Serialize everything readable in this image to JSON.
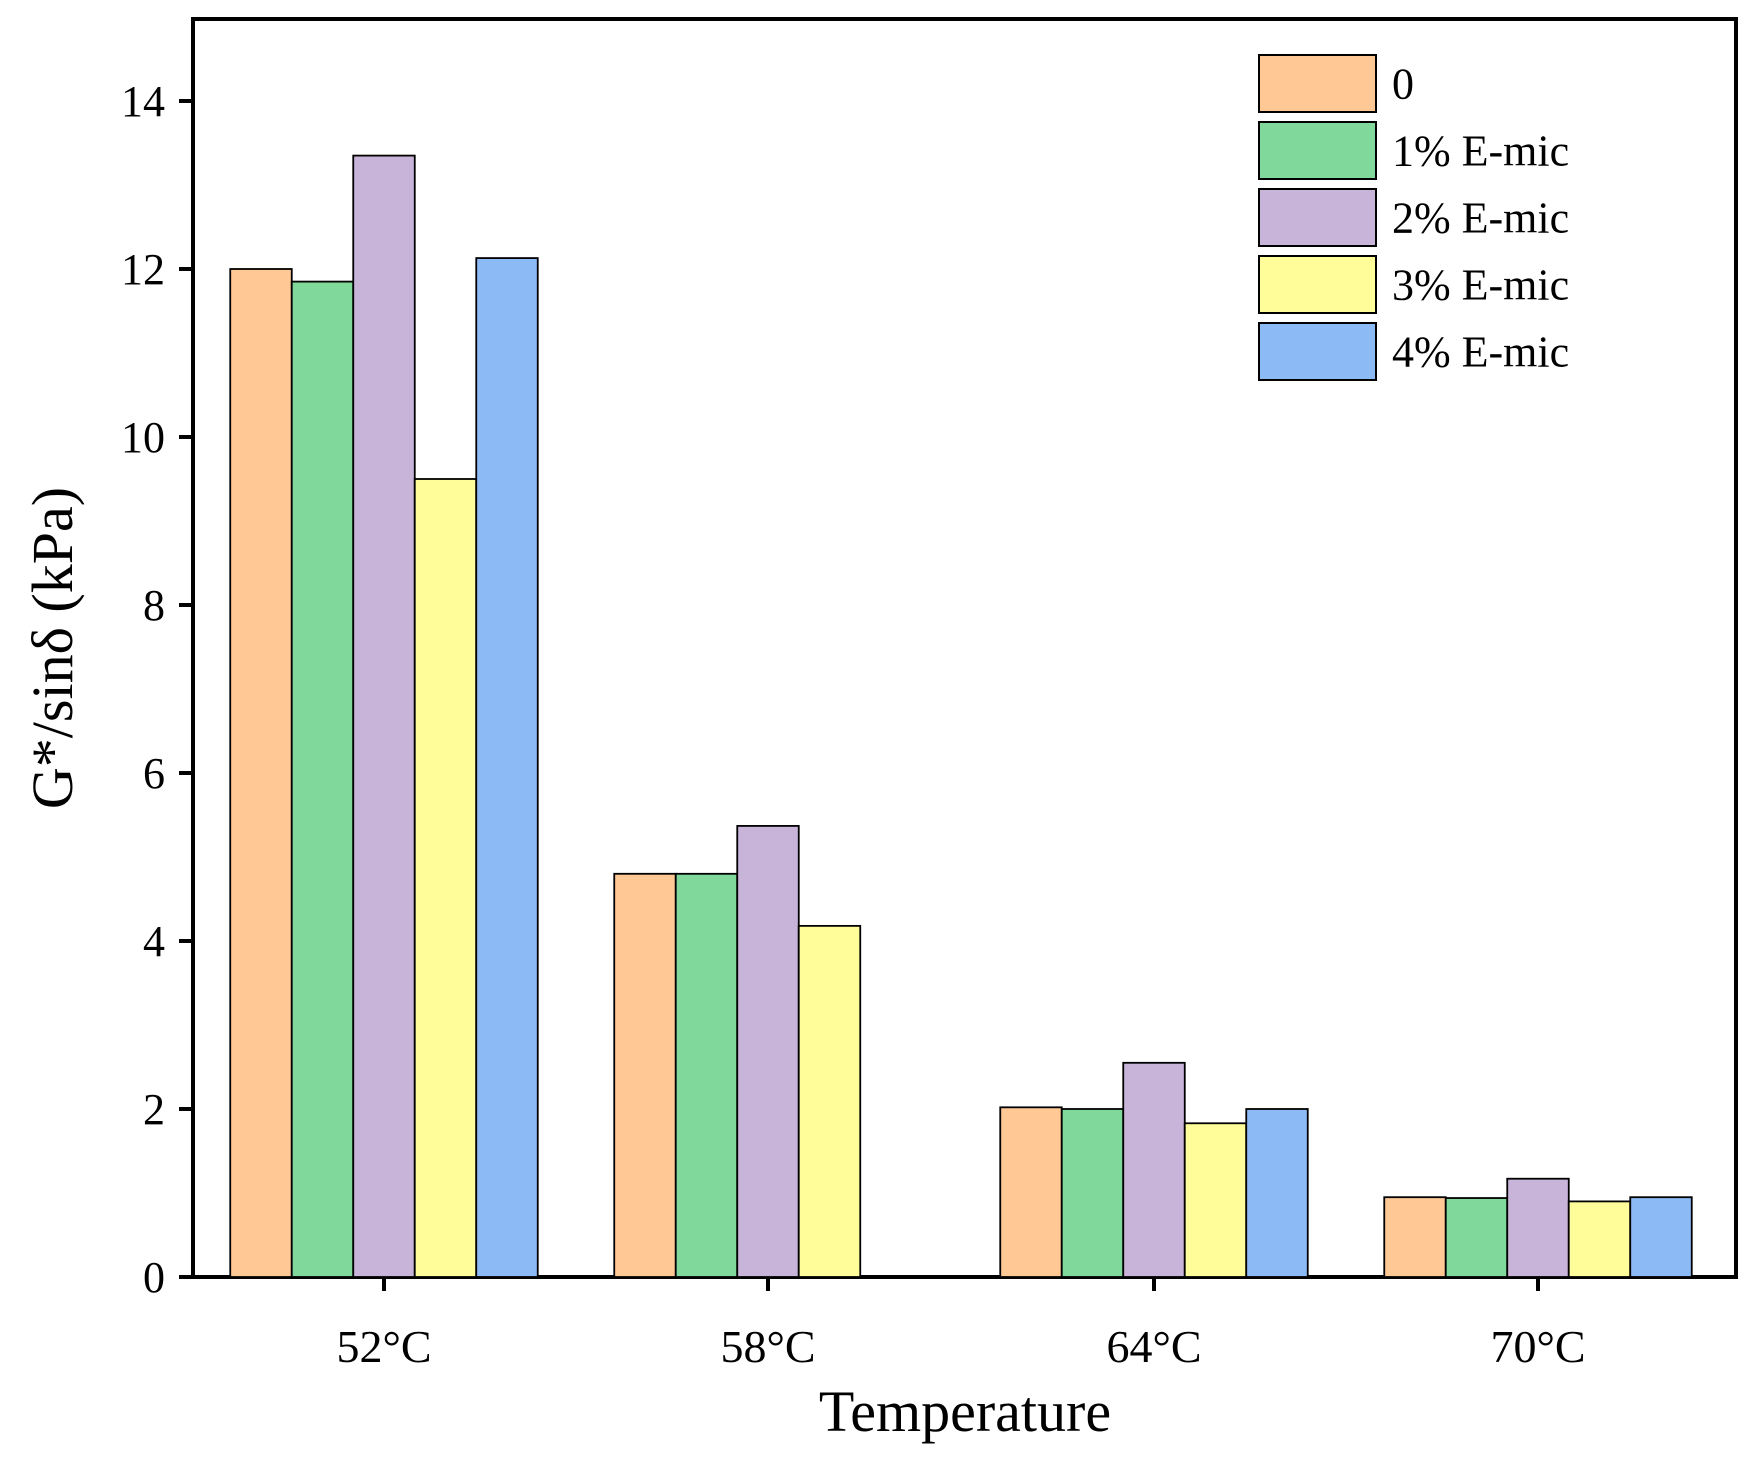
{
  "chart_data": {
    "type": "bar",
    "title": "",
    "xlabel": "Temperature",
    "ylabel": "G*/sinδ (kPa)",
    "categories": [
      "52°C",
      "58°C",
      "64°C",
      "70°C"
    ],
    "ylim": [
      0,
      15
    ],
    "yticks": [
      0,
      2,
      4,
      6,
      8,
      10,
      12,
      14
    ],
    "legend_position": "top-right",
    "series": [
      {
        "name": "0",
        "color": "#FFC895",
        "values": [
          12.0,
          4.8,
          2.02,
          0.95
        ]
      },
      {
        "name": "1% E-mic",
        "color": "#80D99B",
        "values": [
          11.85,
          4.8,
          2.0,
          0.94
        ]
      },
      {
        "name": "2% E-mic",
        "color": "#C8B4D8",
        "values": [
          13.35,
          5.37,
          2.55,
          1.17
        ]
      },
      {
        "name": "3% E-mic",
        "color": "#FFFD9A",
        "values": [
          9.5,
          4.18,
          1.83,
          0.9
        ]
      },
      {
        "name": "4% E-mic",
        "color": "#8BBAF4",
        "values": [
          12.13,
          null,
          2.0,
          0.95
        ]
      }
    ]
  }
}
